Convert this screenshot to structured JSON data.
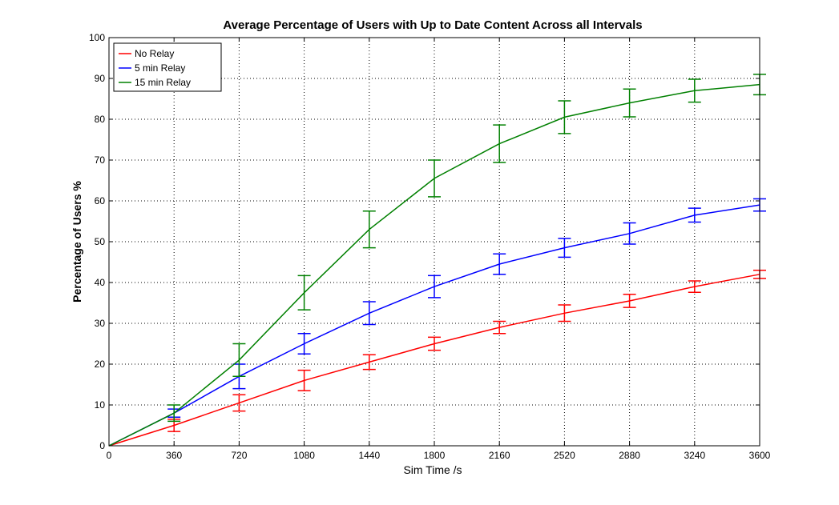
{
  "chart_data": {
    "type": "line",
    "title": "Average Percentage of Users with Up to Date Content Across all Intervals",
    "xlabel": "Sim Time /s",
    "ylabel": "Percentage of Users %",
    "xlim": [
      0,
      3600
    ],
    "ylim": [
      0,
      100
    ],
    "xticks": [
      0,
      360,
      720,
      1080,
      1440,
      1800,
      2160,
      2520,
      2880,
      3240,
      3600
    ],
    "yticks": [
      0,
      10,
      20,
      30,
      40,
      50,
      60,
      70,
      80,
      90,
      100
    ],
    "grid": true,
    "legend_position": "top-left",
    "x": [
      0,
      360,
      720,
      1080,
      1440,
      1800,
      2160,
      2520,
      2880,
      3240,
      3600
    ],
    "series": [
      {
        "name": "No Relay",
        "color": "#ff0000",
        "values": [
          0,
          5.0,
          10.5,
          16.0,
          20.5,
          25.0,
          29.0,
          32.5,
          35.5,
          39.0,
          42.0
        ],
        "errors": [
          0,
          1.5,
          2.0,
          2.5,
          1.8,
          1.6,
          1.5,
          2.0,
          1.6,
          1.4,
          1.0
        ]
      },
      {
        "name": "5 min Relay",
        "color": "#0000ff",
        "values": [
          0,
          8.0,
          17.0,
          25.0,
          32.5,
          39.0,
          44.5,
          48.5,
          52.0,
          56.5,
          59.0
        ],
        "errors": [
          0,
          1.0,
          3.0,
          2.5,
          2.8,
          2.7,
          2.5,
          2.3,
          2.6,
          1.7,
          1.5
        ]
      },
      {
        "name": "15 min Relay",
        "color": "#008000",
        "values": [
          0,
          8.0,
          21.0,
          37.5,
          53.0,
          65.5,
          74.0,
          80.5,
          84.0,
          87.0,
          88.5
        ],
        "errors": [
          0,
          2.0,
          4.0,
          4.2,
          4.5,
          4.5,
          4.6,
          4.0,
          3.4,
          2.8,
          2.5
        ]
      }
    ]
  }
}
